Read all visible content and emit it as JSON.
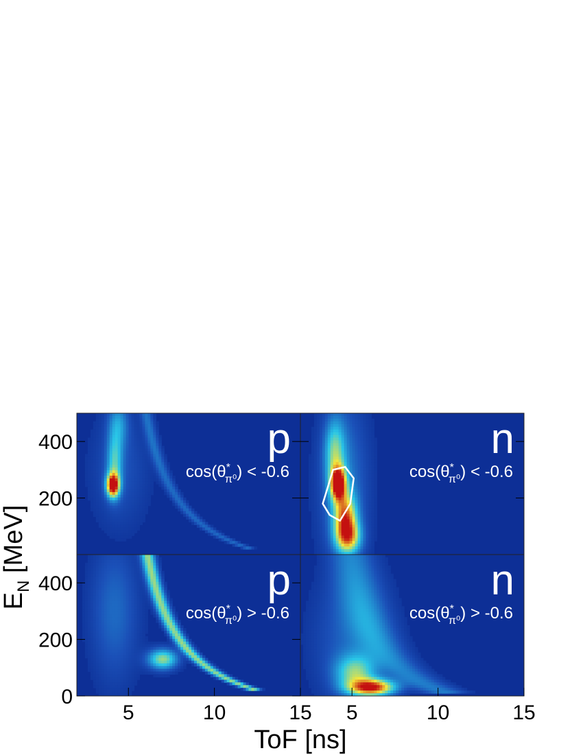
{
  "chart_data": {
    "type": "heatmap",
    "xlabel": "ToF [ns]",
    "ylabel_main": "E",
    "ylabel_sub": "N",
    "ylabel_unit": " [MeV]",
    "colors": {
      "background": "#0d2f96",
      "low": "#1b50b8",
      "cyan": "#29c7e8",
      "yellow": "#f5e63a",
      "red": "#c41010",
      "text": "#ffffff"
    },
    "panels": [
      {
        "row": 0,
        "col": 0,
        "particle": "p",
        "cut_prefix": "cos(θ",
        "cut_sup": "*",
        "cut_sub": "π⁰",
        "cut_suffix": ") < -0.6",
        "xlim": [
          2,
          15
        ],
        "ylim": [
          0,
          500
        ],
        "xticks": [],
        "yticks": [
          200,
          400
        ],
        "ytick_labels": [
          "200",
          "400"
        ],
        "hotspots": [
          {
            "x": 4.1,
            "y": 245,
            "sx": 0.25,
            "sy": 28,
            "w": 1.0
          },
          {
            "x": 4.2,
            "y": 320,
            "sx": 0.3,
            "sy": 70,
            "w": 0.35
          },
          {
            "x": 4.4,
            "y": 460,
            "sx": 0.4,
            "sy": 60,
            "w": 0.25
          }
        ],
        "bands": [
          {
            "a": 4.0,
            "b": 1300,
            "half_width": 0.25,
            "ymin": 20,
            "ymax": 500,
            "w": 0.18
          }
        ],
        "haze": [
          {
            "x": 4.5,
            "y": 300,
            "sx": 1.2,
            "sy": 150,
            "w": 0.12
          }
        ]
      },
      {
        "row": 0,
        "col": 1,
        "particle": "n",
        "cut_prefix": "cos(θ",
        "cut_sup": "*",
        "cut_sub": "π⁰",
        "cut_suffix": ") < -0.6",
        "xlim": [
          2,
          15
        ],
        "ylim": [
          0,
          500
        ],
        "xticks": [],
        "yticks": [
          200,
          400
        ],
        "ytick_labels": [],
        "contour": [
          [
            3.5,
            220
          ],
          [
            3.9,
            300
          ],
          [
            4.6,
            310
          ],
          [
            5.1,
            270
          ],
          [
            4.9,
            180
          ],
          [
            4.3,
            120
          ],
          [
            3.7,
            140
          ],
          [
            3.3,
            180
          ]
        ],
        "hotspots": [
          {
            "x": 4.2,
            "y": 250,
            "sx": 0.3,
            "sy": 40,
            "w": 1.0
          },
          {
            "x": 4.6,
            "y": 130,
            "sx": 0.45,
            "sy": 60,
            "w": 0.7
          },
          {
            "x": 4.8,
            "y": 60,
            "sx": 0.5,
            "sy": 40,
            "w": 0.55
          },
          {
            "x": 4.0,
            "y": 360,
            "sx": 0.4,
            "sy": 80,
            "w": 0.4
          }
        ],
        "bands": [],
        "haze": [
          {
            "x": 4.5,
            "y": 250,
            "sx": 1.0,
            "sy": 220,
            "w": 0.22
          }
        ]
      },
      {
        "row": 1,
        "col": 0,
        "particle": "p",
        "cut_prefix": "cos(θ",
        "cut_sup": "*",
        "cut_sub": "π⁰",
        "cut_suffix": ") > -0.6",
        "xlim": [
          2,
          15
        ],
        "ylim": [
          0,
          500
        ],
        "xticks": [
          5,
          10,
          15
        ],
        "yticks": [
          0,
          200,
          400
        ],
        "ytick_labels": [
          "0",
          "200",
          "400"
        ],
        "xtick_labels": [
          "5",
          "10",
          "15"
        ],
        "hotspots": [
          {
            "x": 7.0,
            "y": 130,
            "sx": 0.6,
            "sy": 25,
            "w": 0.55
          }
        ],
        "bands": [
          {
            "a": 4.0,
            "b": 1350,
            "half_width": 0.28,
            "ymin": 15,
            "ymax": 500,
            "w": 0.55
          }
        ],
        "haze": [
          {
            "x": 4.2,
            "y": 300,
            "sx": 1.0,
            "sy": 180,
            "w": 0.18
          }
        ]
      },
      {
        "row": 1,
        "col": 1,
        "particle": "n",
        "cut_prefix": "cos(θ",
        "cut_sup": "*",
        "cut_sub": "π⁰",
        "cut_suffix": ") > -0.6",
        "xlim": [
          2,
          15
        ],
        "ylim": [
          0,
          500
        ],
        "xticks": [
          5,
          10,
          15
        ],
        "yticks": [],
        "ytick_labels": [],
        "xtick_labels": [
          "5",
          "10",
          "15"
        ],
        "hotspots": [
          {
            "x": 6.2,
            "y": 30,
            "sx": 0.9,
            "sy": 20,
            "w": 0.9
          },
          {
            "x": 5.2,
            "y": 80,
            "sx": 0.8,
            "sy": 45,
            "w": 0.45
          }
        ],
        "bands": [
          {
            "a": 3.2,
            "b": 1100,
            "half_width": 0.9,
            "ymin": 10,
            "ymax": 500,
            "w": 0.22
          }
        ],
        "haze": [
          {
            "x": 5.0,
            "y": 200,
            "sx": 1.6,
            "sy": 160,
            "w": 0.16
          }
        ]
      }
    ]
  }
}
